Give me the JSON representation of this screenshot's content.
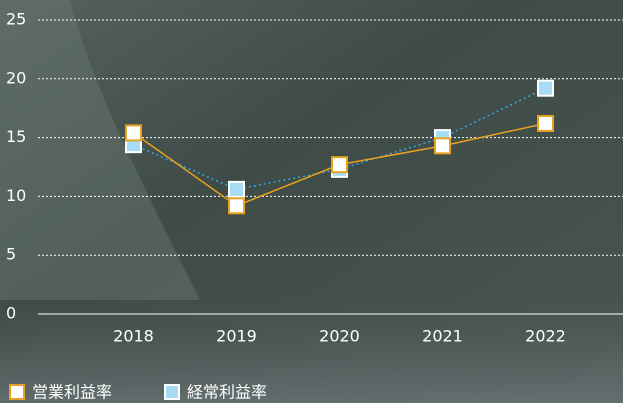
{
  "chart_data": {
    "type": "line",
    "categories": [
      "2018",
      "2019",
      "2020",
      "2021",
      "2022"
    ],
    "series": [
      {
        "name": "営業利益率",
        "color": "#e8a21e",
        "values": [
          15.4,
          9.2,
          12.7,
          14.3,
          16.2
        ]
      },
      {
        "name": "経常利益率",
        "color": "#3aa6dd",
        "values": [
          14.4,
          10.6,
          12.3,
          15.0,
          19.2
        ]
      }
    ],
    "ylim": [
      0,
      25
    ],
    "yticks": [
      0,
      5,
      10,
      15,
      20,
      25
    ],
    "grid": true
  }
}
